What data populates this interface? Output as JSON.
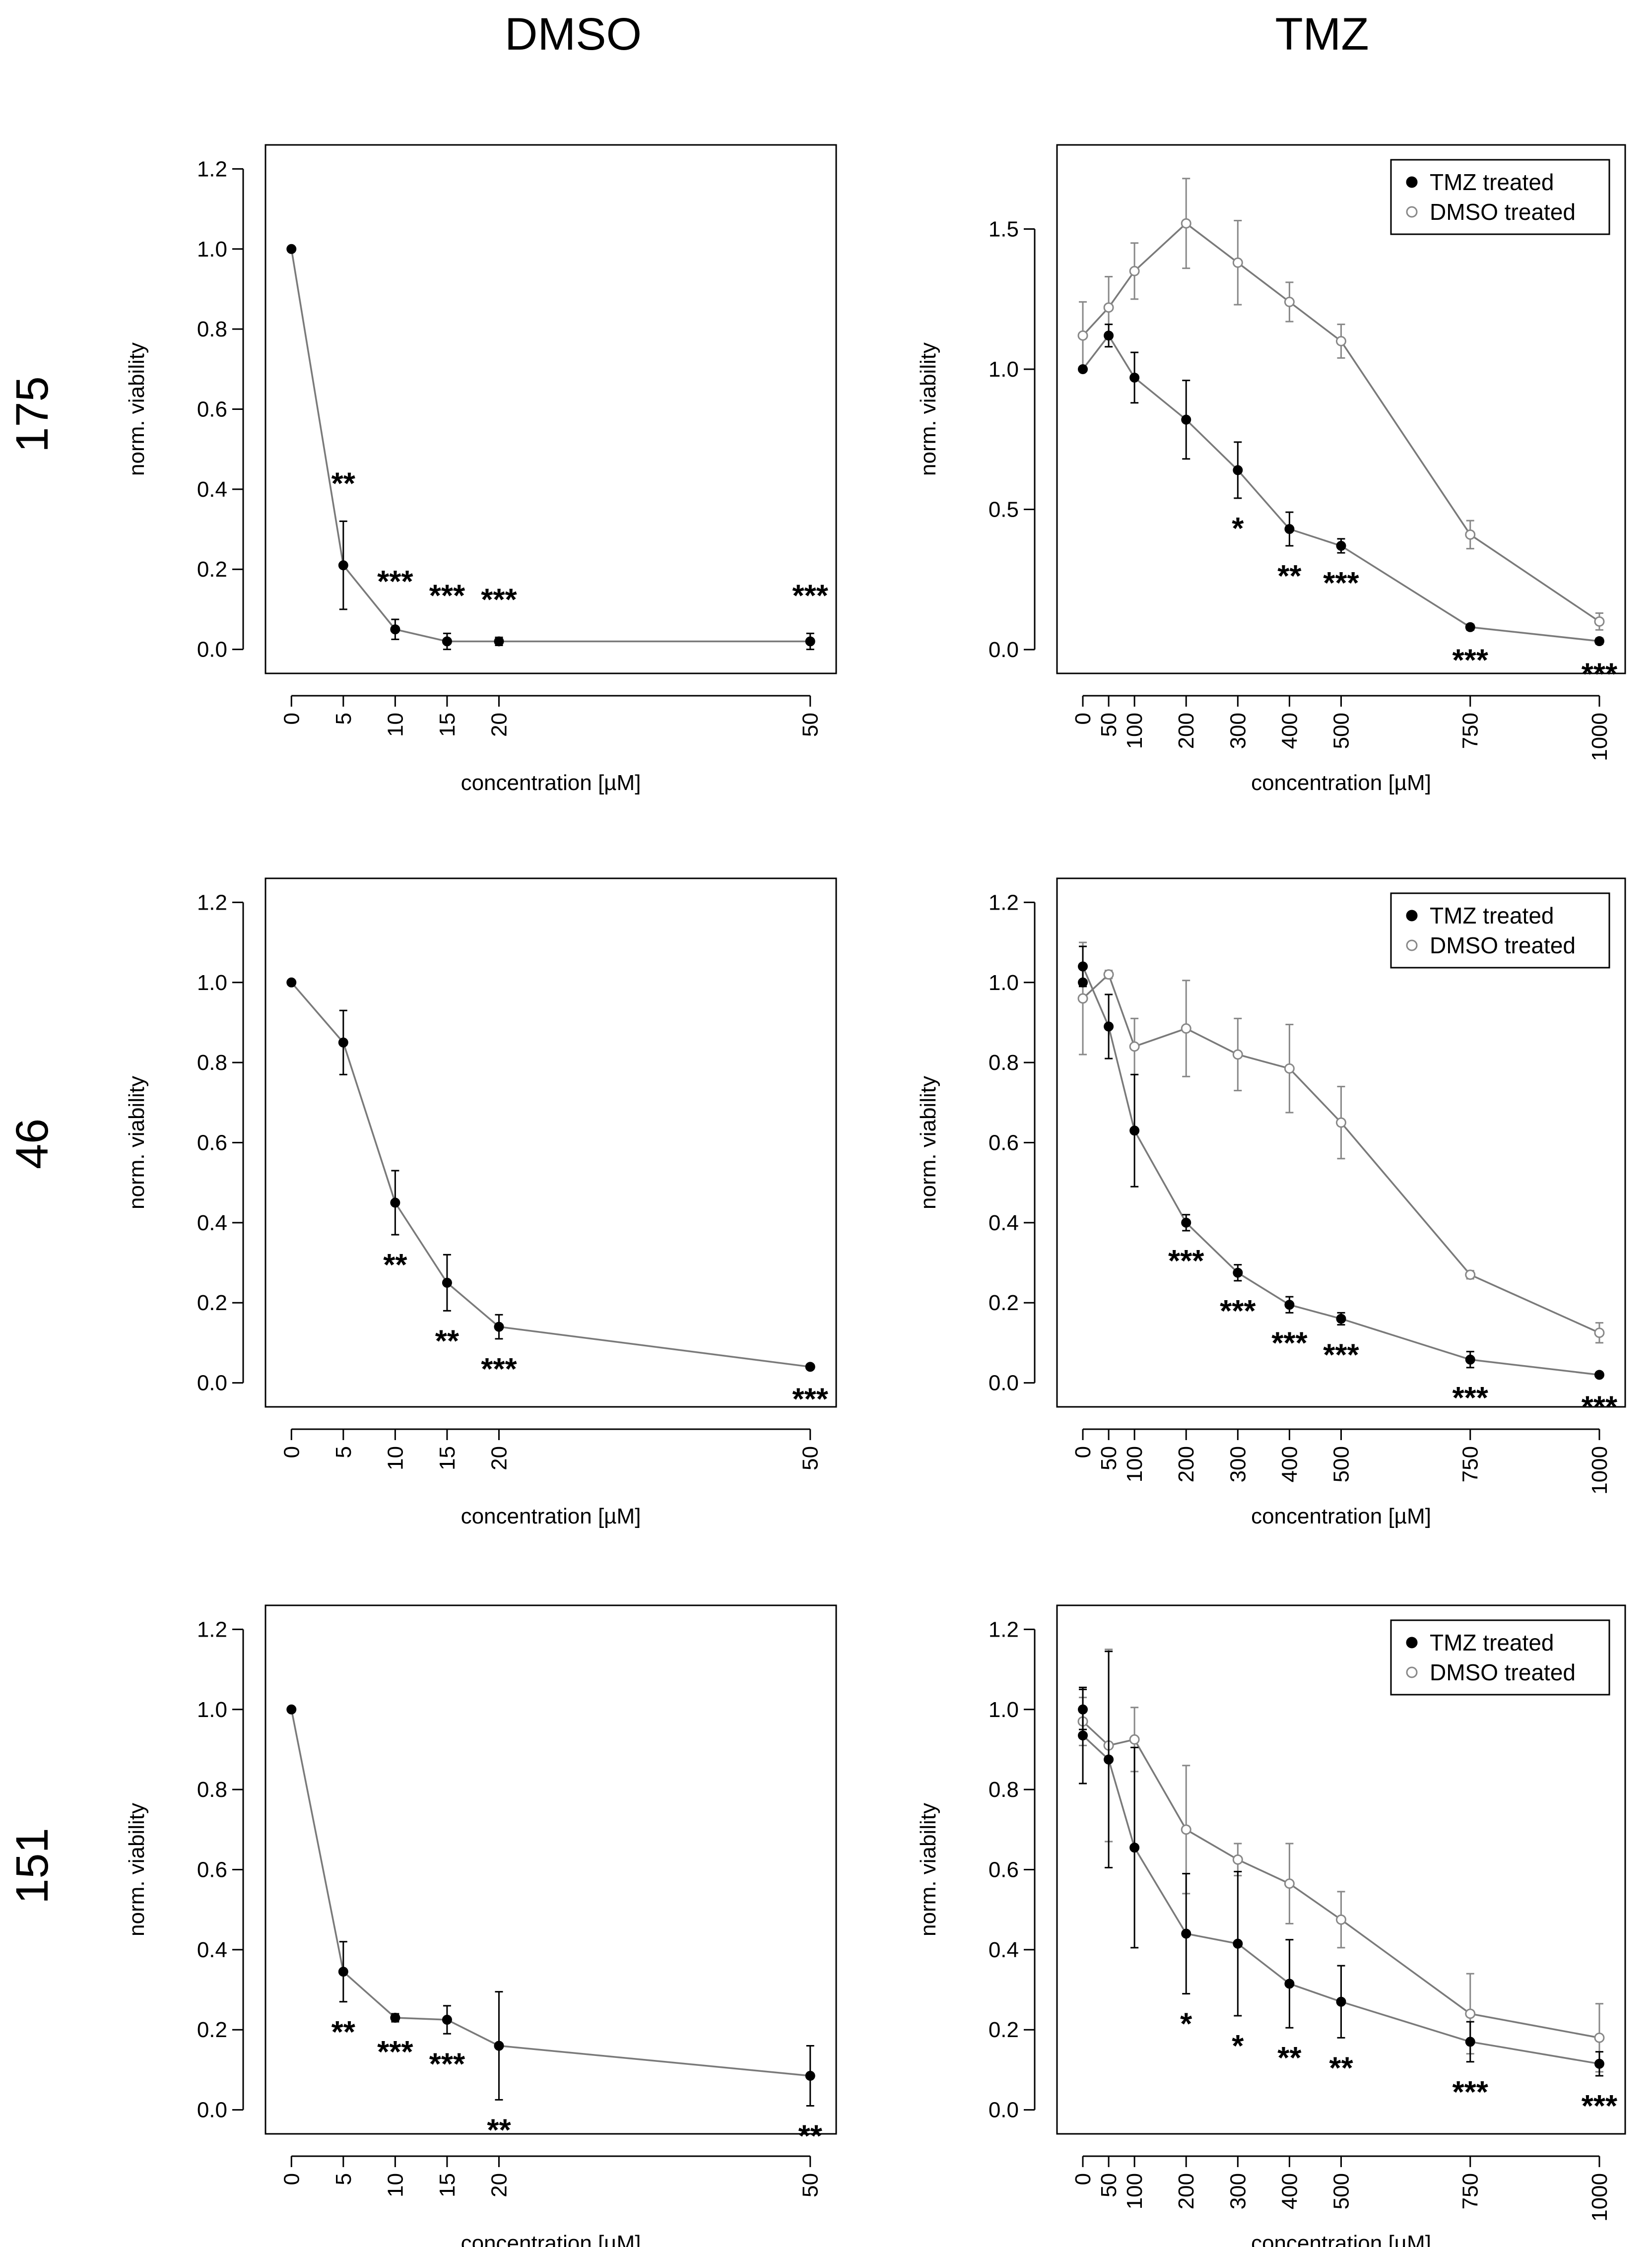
{
  "column_headers": [
    "DMSO",
    "TMZ"
  ],
  "row_labels": [
    "175",
    "46",
    "151"
  ],
  "colors": {
    "tmz_treated": "#000000",
    "dmso_treated": "#888888",
    "line": "#7a7a7a",
    "axis": "#000000"
  },
  "chart_data": [
    {
      "type": "line",
      "panel": "175-DMSO",
      "xlabel": "concentration [µM]",
      "ylabel": "norm. viability",
      "x_ticks": [
        0,
        5,
        10,
        15,
        20,
        50
      ],
      "xlim": [
        -2.5,
        52.5
      ],
      "y_ticks": [
        0.0,
        0.2,
        0.4,
        0.6,
        0.8,
        1.0,
        1.2
      ],
      "ylim": [
        -0.06,
        1.26
      ],
      "legend": false,
      "series": [
        {
          "name": "viability",
          "filled": true,
          "x": [
            0,
            5,
            10,
            15,
            20,
            50
          ],
          "y": [
            1.0,
            0.21,
            0.05,
            0.02,
            0.02,
            0.02
          ],
          "err": [
            0,
            0.11,
            0.025,
            0.02,
            0.01,
            0.02
          ],
          "sig": [
            "",
            "**",
            "***",
            "***",
            "***",
            "***"
          ],
          "sig_pos": [
            "",
            "above",
            "above",
            "above",
            "above",
            "above"
          ]
        }
      ]
    },
    {
      "type": "line",
      "panel": "175-TMZ",
      "xlabel": "concentration [µM]",
      "ylabel": "norm. viability",
      "x_ticks": [
        0,
        50,
        100,
        200,
        300,
        400,
        500,
        750,
        1000
      ],
      "xlim": [
        -50,
        1050
      ],
      "y_ticks": [
        0.0,
        0.5,
        1.0,
        1.5
      ],
      "ylim": [
        -0.085,
        1.8
      ],
      "legend": true,
      "legend_position": "top-right",
      "series": [
        {
          "name": "TMZ treated",
          "filled": true,
          "x": [
            0,
            50,
            100,
            200,
            300,
            400,
            500,
            750,
            1000
          ],
          "y": [
            1.0,
            1.12,
            0.97,
            0.82,
            0.64,
            0.43,
            0.37,
            0.08,
            0.03
          ],
          "err": [
            0,
            0.04,
            0.09,
            0.14,
            0.1,
            0.06,
            0.025,
            0.01,
            0.01
          ],
          "sig": [
            "",
            "",
            "",
            "",
            "*",
            "**",
            "***",
            "***",
            "***"
          ],
          "sig_pos": [
            "",
            "",
            "",
            "",
            "below",
            "below",
            "below",
            "below",
            "below"
          ]
        },
        {
          "name": "DMSO treated",
          "filled": false,
          "x": [
            0,
            50,
            100,
            200,
            300,
            400,
            500,
            750,
            1000
          ],
          "y": [
            1.12,
            1.22,
            1.35,
            1.52,
            1.38,
            1.24,
            1.1,
            0.41,
            0.1
          ],
          "err": [
            0.12,
            0.11,
            0.1,
            0.16,
            0.15,
            0.07,
            0.06,
            0.05,
            0.03
          ],
          "sig": [],
          "sig_pos": []
        }
      ]
    },
    {
      "type": "line",
      "panel": "46-DMSO",
      "xlabel": "concentration [µM]",
      "ylabel": "norm. viability",
      "x_ticks": [
        0,
        5,
        10,
        15,
        20,
        50
      ],
      "xlim": [
        -2.5,
        52.5
      ],
      "y_ticks": [
        0.0,
        0.2,
        0.4,
        0.6,
        0.8,
        1.0,
        1.2
      ],
      "ylim": [
        -0.06,
        1.26
      ],
      "legend": false,
      "series": [
        {
          "name": "viability",
          "filled": true,
          "x": [
            0,
            5,
            10,
            15,
            20,
            50
          ],
          "y": [
            1.0,
            0.85,
            0.45,
            0.25,
            0.14,
            0.04
          ],
          "err": [
            0,
            0.08,
            0.08,
            0.07,
            0.03,
            0.005
          ],
          "sig": [
            "",
            "",
            "**",
            "**",
            "***",
            "***"
          ],
          "sig_pos": [
            "",
            "",
            "below",
            "below",
            "below",
            "below"
          ]
        }
      ]
    },
    {
      "type": "line",
      "panel": "46-TMZ",
      "xlabel": "concentration [µM]",
      "ylabel": "norm. viability",
      "x_ticks": [
        0,
        50,
        100,
        200,
        300,
        400,
        500,
        750,
        1000
      ],
      "xlim": [
        -50,
        1050
      ],
      "y_ticks": [
        0.0,
        0.2,
        0.4,
        0.6,
        0.8,
        1.0,
        1.2
      ],
      "ylim": [
        -0.06,
        1.26
      ],
      "legend": true,
      "legend_position": "top-right",
      "series": [
        {
          "name": "TMZ treated",
          "filled": true,
          "x": [
            0,
            0,
            50,
            100,
            200,
            300,
            400,
            500,
            750,
            1000
          ],
          "y": [
            1.0,
            1.04,
            0.89,
            0.63,
            0.4,
            0.275,
            0.195,
            0.16,
            0.058,
            0.02
          ],
          "err": [
            0,
            0.05,
            0.08,
            0.14,
            0.02,
            0.02,
            0.02,
            0.015,
            0.02,
            0.005
          ],
          "sig": [
            "",
            "",
            "",
            "",
            "***",
            "***",
            "***",
            "***",
            "***",
            "***"
          ],
          "sig_pos": [
            "",
            "",
            "",
            "",
            "below",
            "below",
            "below",
            "below",
            "below",
            "below"
          ]
        },
        {
          "name": "DMSO treated",
          "filled": false,
          "x": [
            0,
            50,
            100,
            200,
            300,
            400,
            500,
            750,
            1000
          ],
          "y": [
            0.96,
            1.02,
            0.84,
            0.885,
            0.82,
            0.785,
            0.65,
            0.27,
            0.125
          ],
          "err": [
            0.14,
            0.01,
            0.07,
            0.12,
            0.09,
            0.11,
            0.09,
            0.01,
            0.025
          ],
          "sig": [],
          "sig_pos": []
        }
      ]
    },
    {
      "type": "line",
      "panel": "151-DMSO",
      "xlabel": "concentration [µM]",
      "ylabel": "norm. viability",
      "x_ticks": [
        0,
        5,
        10,
        15,
        20,
        50
      ],
      "xlim": [
        -2.5,
        52.5
      ],
      "y_ticks": [
        0.0,
        0.2,
        0.4,
        0.6,
        0.8,
        1.0,
        1.2
      ],
      "ylim": [
        -0.06,
        1.26
      ],
      "legend": false,
      "series": [
        {
          "name": "viability",
          "filled": true,
          "x": [
            0,
            5,
            10,
            15,
            20,
            50
          ],
          "y": [
            1.0,
            0.345,
            0.23,
            0.225,
            0.16,
            0.085
          ],
          "err": [
            0,
            0.075,
            0.01,
            0.035,
            0.135,
            0.075
          ],
          "sig": [
            "",
            "**",
            "***",
            "***",
            "**",
            "**"
          ],
          "sig_pos": [
            "",
            "below",
            "below",
            "below",
            "below",
            "below"
          ]
        }
      ]
    },
    {
      "type": "line",
      "panel": "151-TMZ",
      "xlabel": "concentration [µM]",
      "ylabel": "norm. viability",
      "x_ticks": [
        0,
        50,
        100,
        200,
        300,
        400,
        500,
        750,
        1000
      ],
      "xlim": [
        -50,
        1050
      ],
      "y_ticks": [
        0.0,
        0.2,
        0.4,
        0.6,
        0.8,
        1.0,
        1.2
      ],
      "ylim": [
        -0.06,
        1.26
      ],
      "legend": true,
      "legend_position": "top-right",
      "series": [
        {
          "name": "TMZ treated",
          "filled": true,
          "x": [
            0,
            0,
            50,
            100,
            200,
            300,
            400,
            500,
            750,
            1000
          ],
          "y": [
            1.0,
            0.935,
            0.875,
            0.655,
            0.44,
            0.415,
            0.315,
            0.27,
            0.17,
            0.115
          ],
          "err": [
            0.05,
            0.12,
            0.27,
            0.25,
            0.15,
            0.18,
            0.11,
            0.09,
            0.05,
            0.03
          ],
          "sig": [
            "",
            "",
            "",
            "",
            "*",
            "*",
            "**",
            "**",
            "***",
            "***"
          ],
          "sig_pos": [
            "",
            "",
            "",
            "",
            "below",
            "below",
            "below",
            "below",
            "below",
            "below"
          ]
        },
        {
          "name": "DMSO treated",
          "filled": false,
          "x": [
            0,
            50,
            100,
            200,
            300,
            400,
            500,
            750,
            1000
          ],
          "y": [
            0.97,
            0.91,
            0.925,
            0.7,
            0.625,
            0.565,
            0.475,
            0.24,
            0.18
          ],
          "err": [
            0.06,
            0.24,
            0.08,
            0.16,
            0.04,
            0.1,
            0.07,
            0.1,
            0.085
          ],
          "sig": [],
          "sig_pos": []
        }
      ]
    }
  ]
}
